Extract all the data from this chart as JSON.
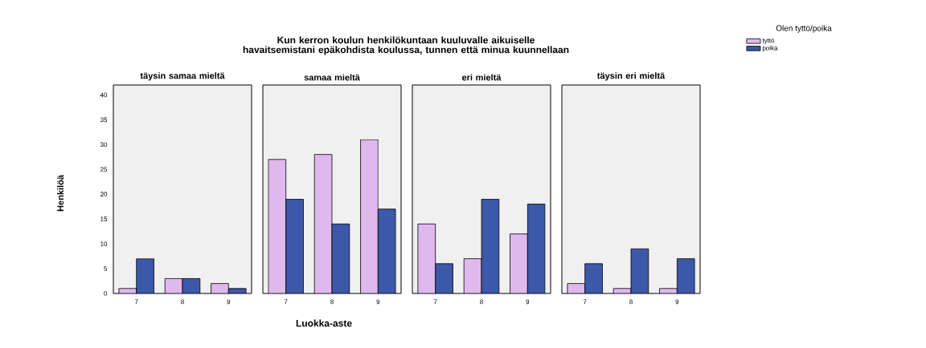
{
  "chart_data": [
    {
      "type": "bar",
      "title": "Kun kerron koulun henkilökuntaan kuuluvalle aikuiselle havaitsemistani epäkohdista koulussa, tunnen että minua kuunnellaan",
      "subtitle": "täysin samaa mieltä",
      "ylabel": "Henkilöä",
      "legend": "top right",
      "legend_title": "Olen tyttö/poika",
      "categories": [
        "7",
        "8",
        "9"
      ],
      "ylim": [
        0,
        42
      ],
      "yticks": [
        0,
        5,
        10,
        15,
        20,
        25,
        30,
        35,
        40
      ],
      "series": [
        {
          "name": "tyttö",
          "color": "#dfb8ee",
          "values": [
            1,
            3,
            2
          ]
        },
        {
          "name": "poika",
          "color": "#3c58a8",
          "values": [
            7,
            3,
            1
          ]
        }
      ]
    },
    {
      "type": "bar",
      "subtitle": "samaa mieltä",
      "xlabel": "Luokka-aste",
      "categories": [
        "7",
        "8",
        "9"
      ],
      "ylim": [
        0,
        42
      ],
      "yticks": [
        0,
        5,
        10,
        15,
        20,
        25,
        30,
        35,
        40
      ],
      "tick_labels": "x",
      "series": [
        {
          "color": "#dfb8ee",
          "values": [
            27,
            28,
            31
          ]
        },
        {
          "color": "#3c58a8",
          "values": [
            19,
            14,
            17
          ]
        }
      ]
    },
    {
      "type": "bar",
      "subtitle": "eri mieltä",
      "categories": [
        "7",
        "8",
        "9"
      ],
      "ylim": [
        0,
        42
      ],
      "yticks": [
        0,
        5,
        10,
        15,
        20,
        25,
        30,
        35,
        40
      ],
      "tick_labels": "x",
      "series": [
        {
          "color": "#dfb8ee",
          "values": [
            14,
            7,
            12
          ]
        },
        {
          "color": "#3c58a8",
          "values": [
            6,
            19,
            18
          ]
        }
      ]
    },
    {
      "type": "bar",
      "subtitle": "täysin eri mieltä",
      "categories": [
        "7",
        "8",
        "9"
      ],
      "ylim": [
        0,
        42
      ],
      "yticks": [
        0,
        5,
        10,
        15,
        20,
        25,
        30,
        35,
        40
      ],
      "tick_labels": "x",
      "series": [
        {
          "color": "#dfb8ee",
          "values": [
            2,
            1,
            1
          ]
        },
        {
          "color": "#3c58a8",
          "values": [
            6,
            9,
            7
          ]
        }
      ]
    }
  ]
}
